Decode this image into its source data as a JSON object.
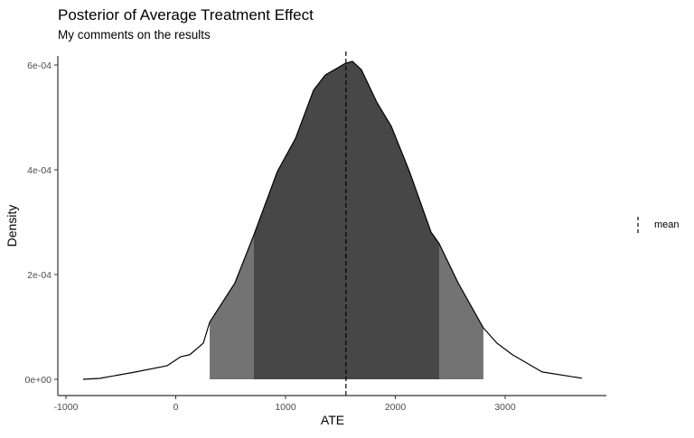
{
  "chart_data": {
    "type": "area",
    "title": "Posterior of Average Treatment Effect",
    "subtitle": "My comments on the results",
    "xlabel": "ATE",
    "ylabel": "Density",
    "xlim": [
      -1000,
      3900
    ],
    "ylim": [
      0,
      0.00062
    ],
    "x_ticks": [
      -1000,
      0,
      1000,
      2000,
      3000
    ],
    "x_tick_labels": [
      "-1000",
      "0",
      "1000",
      "2000",
      "3000"
    ],
    "y_ticks": [
      0,
      0.0002,
      0.0004,
      0.0006
    ],
    "y_tick_labels": [
      "0e+00",
      "2e-04",
      "4e-04",
      "6e-04"
    ],
    "grid": false,
    "density": {
      "x": [
        -844,
        -695,
        -366,
        -78,
        45,
        128,
        251,
        309,
        539,
        712,
        926,
        1091,
        1255,
        1362,
        1543,
        1609,
        1691,
        1831,
        1963,
        2128,
        2325,
        2399,
        2572,
        2802,
        2926,
        3066,
        3337,
        3700
      ],
      "y": [
        0,
        1.7e-06,
        1.4e-05,
        2.6e-05,
        4.3e-05,
        4.7e-05,
        6.9e-05,
        0.000109,
        0.000184,
        0.000276,
        0.000397,
        0.00046,
        0.000552,
        0.000581,
        0.000603,
        0.000607,
        0.000591,
        0.000529,
        0.000483,
        0.000397,
        0.000281,
        0.000259,
        0.000184,
        9.8e-05,
        6.9e-05,
        4.7e-05,
        1.4e-05,
        2e-06
      ]
    },
    "outer_interval": [
      309,
      2802
    ],
    "inner_interval": [
      712,
      2399
    ],
    "mean": 1550,
    "colors": {
      "outer": "#737373",
      "inner": "#474747",
      "line": "#000000"
    },
    "legend": {
      "position": "right",
      "entries": [
        "mean"
      ]
    }
  }
}
